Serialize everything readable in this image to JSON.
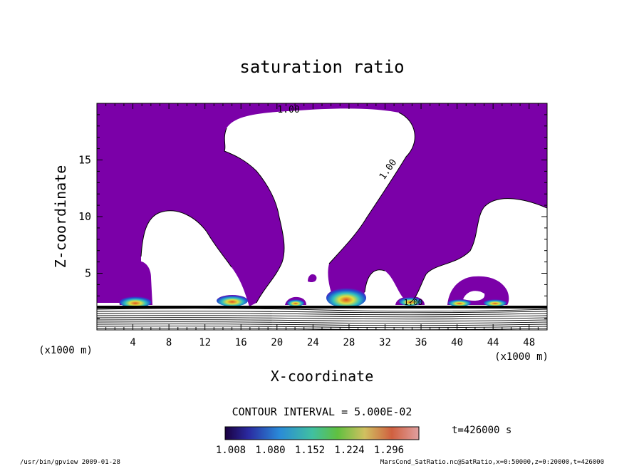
{
  "chart_data": {
    "type": "contour",
    "title": "saturation ratio",
    "xlabel": "X-coordinate",
    "ylabel": "Z-coordinate",
    "x_units": "(x1000 m)",
    "y_units": "(x1000 m)",
    "xlim": [
      0,
      50
    ],
    "ylim": [
      0,
      20
    ],
    "x_ticks": [
      4,
      8,
      12,
      16,
      20,
      24,
      28,
      32,
      36,
      40,
      44,
      48
    ],
    "y_ticks": [
      5,
      10,
      15
    ],
    "contour_interval_text": "CONTOUR INTERVAL = 5.000E-02",
    "time_text": "t=426000 s",
    "colorbar_ticks": [
      "1.008",
      "1.080",
      "1.152",
      "1.224",
      "1.296"
    ],
    "contour_labels": [
      "1.00",
      "1.00",
      "1.00"
    ],
    "fill_color": "#7b00a8",
    "supersaturated_cores_x": [
      4,
      14.5,
      21.5,
      27.5,
      34.5,
      39.5,
      45
    ]
  },
  "footer": {
    "left": "/usr/bin/gpview  2009-01-28",
    "right": "MarsCond_SatRatio.nc@SatRatio,x=0:50000,z=0:20000,t=426000"
  }
}
